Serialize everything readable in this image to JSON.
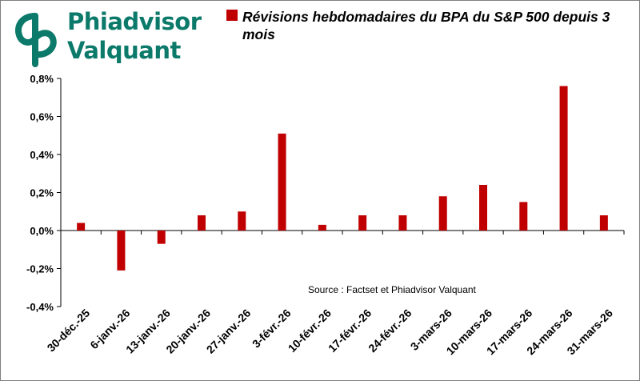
{
  "logo": {
    "line1": "Phiadvisor",
    "line2": "Valquant",
    "brand_color": "#0c7a6a",
    "icon": "phiadvisor-logo-icon"
  },
  "chart_data": {
    "type": "bar",
    "title": "Révisions hebdomadaires du BPA du S&P 500 depuis 3 mois",
    "series": [
      {
        "name": "Révisions hebdomadaires du BPA du S&P 500 depuis 3 mois",
        "color": "#c00000",
        "values": [
          0.0004,
          -0.0021,
          -0.0007,
          0.0008,
          0.001,
          0.0051,
          0.0003,
          0.0008,
          0.0008,
          0.0018,
          0.0024,
          0.0015,
          0.0076,
          0.0008
        ]
      }
    ],
    "categories": [
      "30-déc.-25",
      "6-janv.-26",
      "13-janv.-26",
      "20-janv.-26",
      "27-janv.-26",
      "3-févr.-26",
      "10-févr.-26",
      "17-févr.-26",
      "24-févr.-26",
      "3-mars-26",
      "10-mars-26",
      "17-mars-26",
      "24-mars-26",
      "31-mars-26"
    ],
    "ylim": [
      -0.004,
      0.008
    ],
    "yticks": [
      -0.004,
      -0.002,
      0,
      0.002,
      0.004,
      0.006,
      0.008
    ],
    "ytick_labels": [
      "-0,4%",
      "-0,2%",
      "0,0%",
      "0,2%",
      "0,4%",
      "0,6%",
      "0,8%"
    ],
    "xlabel": "",
    "ylabel": "",
    "grid": false,
    "legend": "top",
    "annotation": "Source : Factset et Phiadvisor Valquant"
  }
}
